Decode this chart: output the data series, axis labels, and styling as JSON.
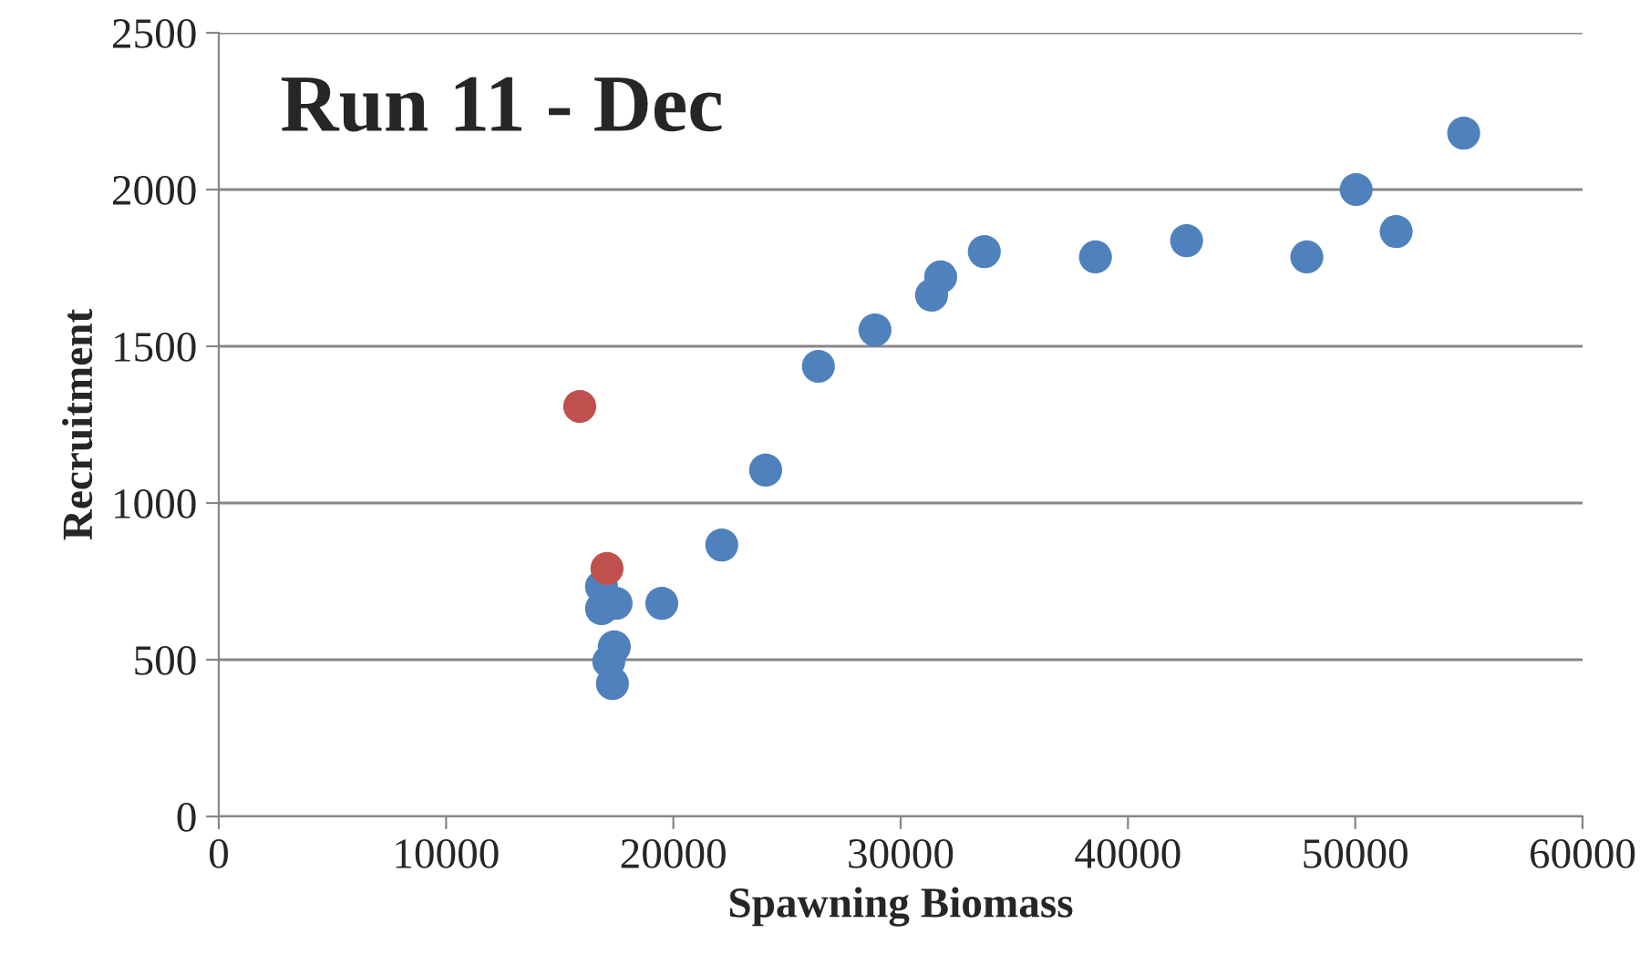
{
  "chart_data": {
    "type": "scatter",
    "title": "Run 11 - Dec",
    "xlabel": "Spawning Biomass",
    "ylabel": "Recruitment",
    "xlim": [
      0,
      60000
    ],
    "xticks": [
      0,
      10000,
      20000,
      30000,
      40000,
      50000,
      60000
    ],
    "ylim": [
      0,
      2500
    ],
    "yticks": [
      0,
      500,
      1000,
      1500,
      2000,
      2500
    ],
    "grid": "y",
    "marker": "circle",
    "legend": false,
    "series": [
      {
        "color": "#4f81bd",
        "x": [
          16840,
          16840,
          17480,
          19490,
          17400,
          17160,
          17320,
          22130,
          24060,
          26380,
          28870,
          31360,
          31760,
          33680,
          38570,
          42580,
          47870,
          50040,
          51800,
          54770
        ],
        "values": [
          733,
          663,
          680,
          680,
          541,
          494,
          424,
          866,
          1105,
          1436,
          1552,
          1663,
          1721,
          1802,
          1785,
          1837,
          1785,
          2000,
          1866,
          2180
        ]
      },
      {
        "color": "#c0504d",
        "x": [
          15880,
          17080
        ],
        "values": [
          1308,
          791
        ]
      }
    ]
  }
}
